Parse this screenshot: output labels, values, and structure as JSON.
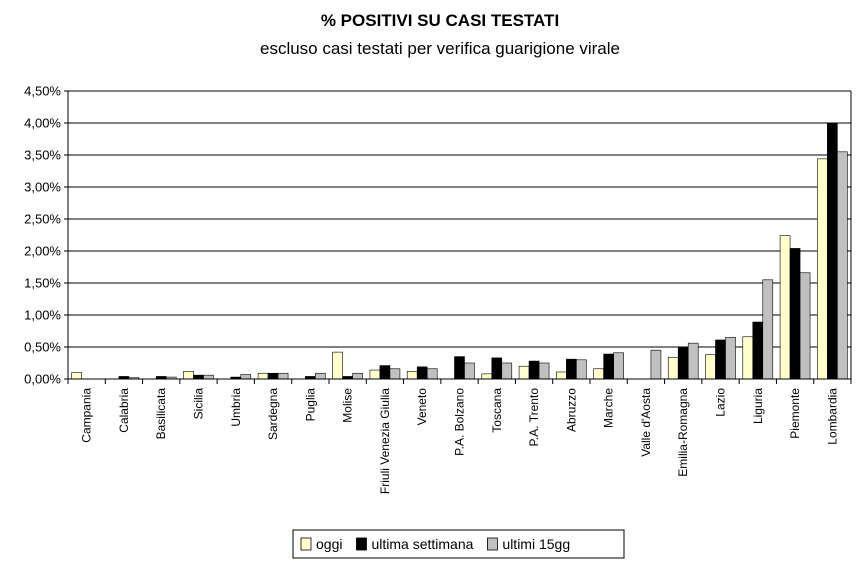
{
  "chart_data": {
    "type": "bar",
    "title": "% POSITIVI SU CASI TESTATI",
    "subtitle": "escluso casi testati per verifica guarigione virale",
    "xlabel": "",
    "ylabel": "",
    "ylim": [
      0,
      0.045
    ],
    "y_ticks": [
      "0,00%",
      "0,50%",
      "1,00%",
      "1,50%",
      "2,00%",
      "2,50%",
      "3,00%",
      "3,50%",
      "4,00%",
      "4,50%"
    ],
    "grid": true,
    "legend_position": "bottom",
    "categories": [
      "Campania",
      "Calabria",
      "Basilicata",
      "Sicilia",
      "Umbria",
      "Sardegna",
      "Puglia",
      "Molise",
      "Friuli Venezia Giulia",
      "Veneto",
      "P.A. Bolzano",
      "Toscana",
      "P.A. Trento",
      "Abruzzo",
      "Marche",
      "Valle d'Aosta",
      "Emilia-Romagna",
      "Lazio",
      "Liguria",
      "Piemonte",
      "Lombardia"
    ],
    "series": [
      {
        "name": "oggi",
        "color": "#ffffcc",
        "values": [
          0.001,
          0.0,
          0.0,
          0.0012,
          0.0,
          0.0009,
          0.0,
          0.0042,
          0.0014,
          0.0012,
          0.0,
          0.0008,
          0.002,
          0.0011,
          0.0016,
          0.0,
          0.0034,
          0.0038,
          0.0066,
          0.0224,
          0.0344
        ]
      },
      {
        "name": "ultima settimana",
        "color": "#000000",
        "values": [
          0.0,
          0.0004,
          0.0004,
          0.0006,
          0.0003,
          0.0009,
          0.0004,
          0.0004,
          0.0021,
          0.0019,
          0.0035,
          0.0033,
          0.0028,
          0.0031,
          0.0039,
          0.0,
          0.0049,
          0.0061,
          0.0089,
          0.0204,
          0.04
        ]
      },
      {
        "name": "ultimi 15gg",
        "color": "#c0c0c0",
        "values": [
          0.0,
          0.0002,
          0.0003,
          0.0006,
          0.0007,
          0.0009,
          0.0009,
          0.0009,
          0.0016,
          0.0016,
          0.0025,
          0.0025,
          0.0025,
          0.003,
          0.0041,
          0.0045,
          0.0056,
          0.0065,
          0.0155,
          0.0166,
          0.0355
        ]
      }
    ]
  }
}
